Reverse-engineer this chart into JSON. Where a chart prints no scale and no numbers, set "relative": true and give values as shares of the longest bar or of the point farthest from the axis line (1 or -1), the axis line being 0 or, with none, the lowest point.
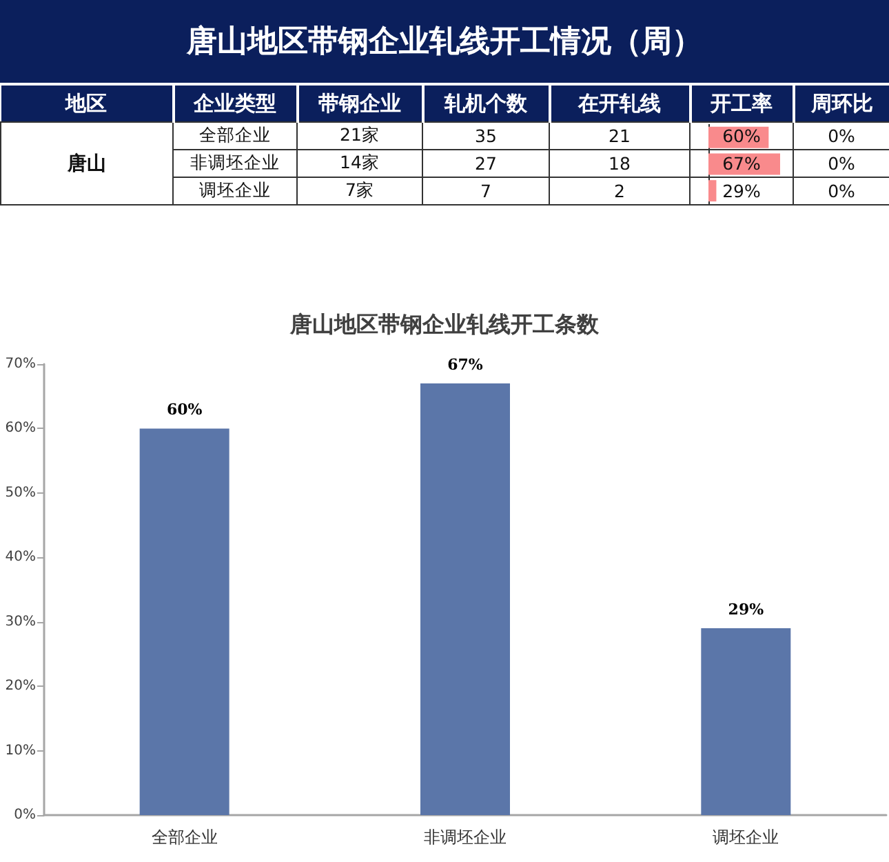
{
  "chart_data": [
    {
      "type": "other",
      "title": "唐山地区带钢企业轧线开工情况（周）",
      "categories": [
        "地区",
        "企业类型",
        "带钢企业",
        "轧机个数",
        "在开轧线",
        "开工率",
        "周环比"
      ],
      "cell_labels": [
        [
          "唐山",
          "全部企业",
          "21家",
          "35",
          "21",
          "60%",
          "0%"
        ],
        [
          null,
          "非调坯企业",
          "14家",
          "27",
          "18",
          "67%",
          "0%"
        ],
        [
          null,
          "调坯企业",
          "7家",
          "7",
          "2",
          "29%",
          "0%"
        ]
      ]
    },
    {
      "type": "bar",
      "orientation": "horizontal",
      "relative": true,
      "categories": [
        null,
        null,
        null
      ],
      "values": [
        0.84,
        1,
        0.11
      ],
      "color": "#f98a8c"
    },
    {
      "type": "bar",
      "title": "唐山地区带钢企业轧线开工条数",
      "categories": [
        "全部企业",
        "非调坯企业",
        "调坯企业"
      ],
      "values": [
        60,
        67,
        29
      ],
      "color": "#5b76a9",
      "ylim": [
        0,
        70
      ],
      "yticks": [
        {
          "value": 0,
          "label": "0%"
        },
        {
          "value": 10,
          "label": "10%"
        },
        {
          "value": 20,
          "label": "20%"
        },
        {
          "value": 30,
          "label": "30%"
        },
        {
          "value": 40,
          "label": "40%"
        },
        {
          "value": 50,
          "label": "50%"
        },
        {
          "value": 60,
          "label": "60%"
        },
        {
          "value": 70,
          "label": "70%"
        }
      ],
      "value_labels": [
        "60%",
        "67%",
        "29%"
      ]
    }
  ]
}
